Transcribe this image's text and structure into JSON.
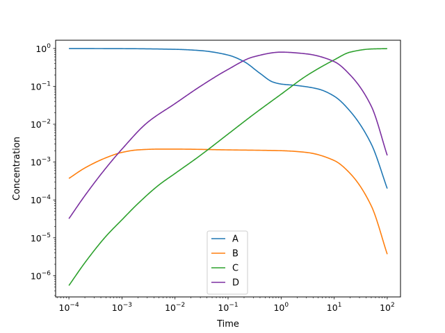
{
  "chart_data": {
    "type": "line",
    "title": "",
    "xlabel": "Time",
    "ylabel": "Concentration",
    "xscale": "log",
    "yscale": "log",
    "xlim": [
      5.62e-05,
      177.8
    ],
    "ylim": [
      2.75e-07,
      1.65
    ],
    "xticks": [
      0.0001,
      0.001,
      0.01,
      0.1,
      1,
      10,
      100
    ],
    "xtick_labels": [
      {
        "base": "10",
        "exp": "−4"
      },
      {
        "base": "10",
        "exp": "−3"
      },
      {
        "base": "10",
        "exp": "−2"
      },
      {
        "base": "10",
        "exp": "−1"
      },
      {
        "base": "10",
        "exp": "0"
      },
      {
        "base": "10",
        "exp": "1"
      },
      {
        "base": "10",
        "exp": "2"
      }
    ],
    "yticks": [
      1e-06,
      1e-05,
      0.0001,
      0.001,
      0.01,
      0.1,
      1
    ],
    "ytick_labels": [
      {
        "base": "10",
        "exp": "−6"
      },
      {
        "base": "10",
        "exp": "−5"
      },
      {
        "base": "10",
        "exp": "−4"
      },
      {
        "base": "10",
        "exp": "−3"
      },
      {
        "base": "10",
        "exp": "−2"
      },
      {
        "base": "10",
        "exp": "−1"
      },
      {
        "base": "10",
        "exp": "0"
      }
    ],
    "grid": false,
    "legend_position": "lower center",
    "series": [
      {
        "name": "A",
        "color": "#1f77b4",
        "x": [
          0.0001,
          0.001,
          0.01,
          0.03,
          0.1,
          0.2,
          0.4,
          0.7,
          1,
          2,
          5,
          10,
          20,
          50,
          100
        ],
        "y": [
          0.999,
          0.99,
          0.95,
          0.88,
          0.67,
          0.45,
          0.22,
          0.13,
          0.115,
          0.105,
          0.085,
          0.055,
          0.022,
          0.003,
          0.0002
        ]
      },
      {
        "name": "B",
        "color": "#ff7f0e",
        "x": [
          0.0001,
          0.0002,
          0.0005,
          0.001,
          0.002,
          0.005,
          0.01,
          0.1,
          1,
          3,
          10,
          20,
          50,
          100
        ],
        "y": [
          0.00037,
          0.0007,
          0.0013,
          0.0018,
          0.0021,
          0.0022,
          0.0022,
          0.0021,
          0.002,
          0.0018,
          0.0011,
          0.0005,
          7e-05,
          3.7e-06
        ]
      },
      {
        "name": "C",
        "color": "#2ca02c",
        "x": [
          0.0001,
          0.0002,
          0.0005,
          0.001,
          0.002,
          0.005,
          0.01,
          0.03,
          0.1,
          0.3,
          1,
          3,
          10,
          20,
          50,
          100
        ],
        "y": [
          5.5e-07,
          2.2e-06,
          1.1e-05,
          3e-05,
          8e-05,
          0.00025,
          0.0005,
          0.0015,
          0.0055,
          0.018,
          0.062,
          0.19,
          0.5,
          0.8,
          0.97,
          0.99
        ]
      },
      {
        "name": "D",
        "color": "#7b2fa0",
        "x": [
          0.0001,
          0.0002,
          0.0005,
          0.001,
          0.003,
          0.01,
          0.03,
          0.1,
          0.3,
          1,
          3,
          10,
          20,
          50,
          100
        ],
        "y": [
          3.2e-05,
          0.00013,
          0.0007,
          0.0022,
          0.011,
          0.035,
          0.1,
          0.28,
          0.6,
          0.8,
          0.72,
          0.45,
          0.2,
          0.03,
          0.0015
        ]
      }
    ]
  }
}
